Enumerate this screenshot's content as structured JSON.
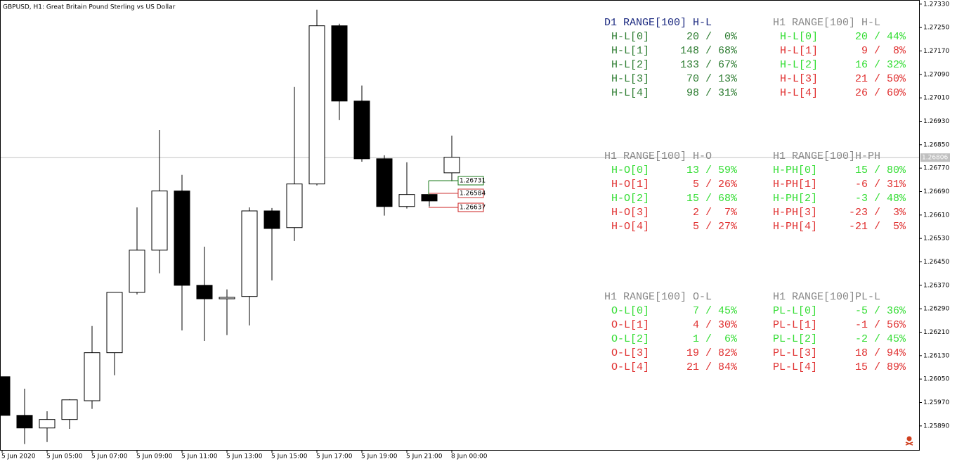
{
  "chart_data": {
    "type": "candlestick",
    "title": "GBPUSD, H1:  Great Britain Pound Sterling  vs US Dollar",
    "categories": [
      "5 Jun 2020",
      null,
      "5 Jun 05:00",
      null,
      "5 Jun 07:00",
      null,
      "5 Jun 09:00",
      null,
      "5 Jun 11:00",
      null,
      "5 Jun 13:00",
      null,
      "5 Jun 15:00",
      null,
      "5 Jun 17:00",
      null,
      "5 Jun 19:00",
      null,
      "5 Jun 21:00",
      null,
      "8 Jun 00:00"
    ],
    "open": [
      1.26058,
      1.25926,
      1.25883,
      1.25912,
      1.25976,
      1.2614,
      1.26346,
      1.2649,
      1.26692,
      1.2637,
      1.26324,
      1.26332,
      1.26624,
      1.26567,
      1.26716,
      1.27256,
      1.26999,
      1.26802,
      1.26639,
      1.2668,
      1.26754
    ],
    "high": [
      1.26058,
      1.26017,
      1.2594,
      1.25981,
      1.26231,
      1.26346,
      1.26636,
      1.269,
      1.26747,
      1.26502,
      1.26356,
      1.26636,
      1.26634,
      1.27047,
      1.27311,
      1.27263,
      1.27052,
      1.26814,
      1.2679,
      1.2668,
      1.26881
    ],
    "low": [
      1.25926,
      1.25828,
      1.25835,
      1.2588,
      1.25948,
      1.26063,
      1.26339,
      1.26411,
      1.26216,
      1.2618,
      1.262,
      1.26233,
      1.26387,
      1.26521,
      1.26711,
      1.26934,
      1.26792,
      1.26608,
      1.26632,
      1.26639,
      1.26725
    ],
    "close": [
      1.25926,
      1.25883,
      1.25912,
      1.25979,
      1.2614,
      1.26346,
      1.2649,
      1.26692,
      1.2637,
      1.26324,
      1.26329,
      1.26624,
      1.26564,
      1.26716,
      1.27256,
      1.26999,
      1.26802,
      1.26639,
      1.2668,
      1.26658,
      1.26807
    ],
    "up_color": "#ffffff",
    "down_color": "#000000",
    "ylim": [
      1.25808,
      1.27344
    ],
    "yticks": [
      {
        "value": 1.2733,
        "label": "1.27330"
      },
      {
        "value": 1.2725,
        "label": "1.27250"
      },
      {
        "value": 1.2717,
        "label": "1.27170"
      },
      {
        "value": 1.2709,
        "label": "1.27090"
      },
      {
        "value": 1.2701,
        "label": "1.27010"
      },
      {
        "value": 1.2693,
        "label": "1.26930"
      },
      {
        "value": 1.2685,
        "label": "1.26850"
      },
      {
        "value": 1.2677,
        "label": "1.26770"
      },
      {
        "value": 1.2669,
        "label": "1.26690"
      },
      {
        "value": 1.2661,
        "label": "1.26610"
      },
      {
        "value": 1.2653,
        "label": "1.26530"
      },
      {
        "value": 1.2645,
        "label": "1.26450"
      },
      {
        "value": 1.2637,
        "label": "1.26370"
      },
      {
        "value": 1.2629,
        "label": "1.26290"
      },
      {
        "value": 1.2621,
        "label": "1.26210"
      },
      {
        "value": 1.2613,
        "label": "1.26130"
      },
      {
        "value": 1.2605,
        "label": "1.26050"
      },
      {
        "value": 1.2597,
        "label": "1.25970"
      },
      {
        "value": 1.2589,
        "label": "1.25890"
      }
    ],
    "last_price": 1.26806,
    "price_labels": [
      1.26731,
      1.26584,
      1.26637
    ],
    "price_label_colors": [
      "#1a7a1a",
      "#cc3333",
      "#cc2222"
    ],
    "panels": [
      {
        "title": "D1 RANGE[100] H-L",
        "title_color": "#1c2a80",
        "rows": [
          {
            "label": "H-L[0]",
            "value": "20 /  0%",
            "color": "#2e7d32"
          },
          {
            "label": "H-L[1]",
            "value": "148 / 68%",
            "color": "#2e7d32"
          },
          {
            "label": "H-L[2]",
            "value": "133 / 67%",
            "color": "#2e7d32"
          },
          {
            "label": "H-L[3]",
            "value": "70 / 13%",
            "color": "#2e7d32"
          },
          {
            "label": "H-L[4]",
            "value": "98 / 31%",
            "color": "#2e7d32"
          }
        ]
      },
      {
        "title": "H1 RANGE[100] H-L",
        "title_color": "#888888",
        "rows": [
          {
            "label": "H-L[0]",
            "value": "20 / 44%",
            "color": "#33dd33"
          },
          {
            "label": "H-L[1]",
            "value": "9 /  8%",
            "color": "#e03030"
          },
          {
            "label": "H-L[2]",
            "value": "16 / 32%",
            "color": "#33dd33"
          },
          {
            "label": "H-L[3]",
            "value": "21 / 50%",
            "color": "#e03030"
          },
          {
            "label": "H-L[4]",
            "value": "26 / 60%",
            "color": "#e03030"
          }
        ]
      },
      {
        "title": "H1 RANGE[100] H-O",
        "title_color": "#888888",
        "rows": [
          {
            "label": "H-O[0]",
            "value": "13 / 59%",
            "color": "#33dd33"
          },
          {
            "label": "H-O[1]",
            "value": "5 / 26%",
            "color": "#e03030"
          },
          {
            "label": "H-O[2]",
            "value": "15 / 68%",
            "color": "#33dd33"
          },
          {
            "label": "H-O[3]",
            "value": "2 /  7%",
            "color": "#e03030"
          },
          {
            "label": "H-O[4]",
            "value": "5 / 27%",
            "color": "#e03030"
          }
        ]
      },
      {
        "title": "H1 RANGE[100]H-PH",
        "title_color": "#888888",
        "rows": [
          {
            "label": "H-PH[0]",
            "value": "15 / 80%",
            "color": "#33dd33"
          },
          {
            "label": "H-PH[1]",
            "value": "-6 / 31%",
            "color": "#e03030"
          },
          {
            "label": "H-PH[2]",
            "value": "-3 / 48%",
            "color": "#33dd33"
          },
          {
            "label": "H-PH[3]",
            "value": "-23 /  3%",
            "color": "#e03030"
          },
          {
            "label": "H-PH[4]",
            "value": "-21 /  5%",
            "color": "#e03030"
          }
        ]
      },
      {
        "title": "H1 RANGE[100] O-L",
        "title_color": "#888888",
        "rows": [
          {
            "label": "O-L[0]",
            "value": "7 / 45%",
            "color": "#33dd33"
          },
          {
            "label": "O-L[1]",
            "value": "4 / 30%",
            "color": "#e03030"
          },
          {
            "label": "O-L[2]",
            "value": "1 /  6%",
            "color": "#33dd33"
          },
          {
            "label": "O-L[3]",
            "value": "19 / 82%",
            "color": "#e03030"
          },
          {
            "label": "O-L[4]",
            "value": "21 / 84%",
            "color": "#e03030"
          }
        ]
      },
      {
        "title": "H1 RANGE[100]PL-L",
        "title_color": "#888888",
        "rows": [
          {
            "label": "PL-L[0]",
            "value": "-5 / 36%",
            "color": "#33dd33"
          },
          {
            "label": "PL-L[1]",
            "value": "-1 / 56%",
            "color": "#e03030"
          },
          {
            "label": "PL-L[2]",
            "value": "-2 / 45%",
            "color": "#33dd33"
          },
          {
            "label": "PL-L[3]",
            "value": "18 / 94%",
            "color": "#e03030"
          },
          {
            "label": "PL-L[4]",
            "value": "15 / 89%",
            "color": "#e03030"
          }
        ]
      }
    ]
  }
}
